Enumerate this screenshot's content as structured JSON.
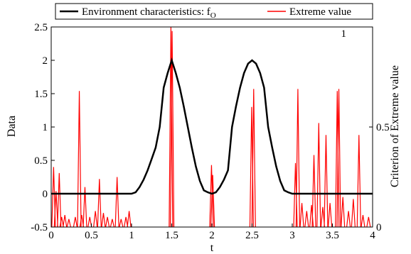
{
  "chart_data": {
    "type": "line",
    "xlabel": "t",
    "ylabel": "Data",
    "y2label": "Criterion of Extreme value",
    "xlim": [
      0,
      4
    ],
    "ylim": [
      -0.5,
      2.5
    ],
    "y2lim": [
      0,
      1
    ],
    "x_ticks": [
      "0",
      "0.5",
      "1",
      "1.5",
      "2",
      "2.5",
      "3",
      "3.5",
      "4"
    ],
    "y_ticks": [
      "-0.5",
      "0",
      "0.5",
      "1",
      "1.5",
      "2",
      "2.5"
    ],
    "y2_ticks": [
      "0",
      "0.5",
      "1"
    ],
    "grid": false,
    "legend_position": "top",
    "legend": [
      "Environment characteristics: f",
      "Extreme value"
    ],
    "legend_subscript": "O",
    "colors": {
      "env": "#000000",
      "extreme": "#ff0000"
    },
    "series": [
      {
        "name": "Environment characteristics: fO",
        "axis": "left",
        "x": [
          0.0,
          0.25,
          0.5,
          0.75,
          1.0,
          1.05,
          1.1,
          1.15,
          1.2,
          1.25,
          1.3,
          1.35,
          1.4,
          1.45,
          1.5,
          1.55,
          1.6,
          1.65,
          1.7,
          1.75,
          1.8,
          1.85,
          1.9,
          1.95,
          2.0,
          2.05,
          2.1,
          2.15,
          2.2,
          2.25,
          2.3,
          2.35,
          2.4,
          2.45,
          2.5,
          2.55,
          2.6,
          2.65,
          2.7,
          2.75,
          2.8,
          2.85,
          2.9,
          2.95,
          3.0,
          3.25,
          3.5,
          3.75,
          4.0
        ],
        "values": [
          0.0,
          0.0,
          0.0,
          0.0,
          0.0,
          0.02,
          0.1,
          0.21,
          0.35,
          0.52,
          0.69,
          1.0,
          1.59,
          1.81,
          2.0,
          1.81,
          1.59,
          1.31,
          1.0,
          0.69,
          0.41,
          0.19,
          0.05,
          0.02,
          0.0,
          0.02,
          0.1,
          0.21,
          0.35,
          1.0,
          1.31,
          1.59,
          1.81,
          1.95,
          2.0,
          1.95,
          1.81,
          1.59,
          1.0,
          0.69,
          0.41,
          0.19,
          0.05,
          0.02,
          0.0,
          0.0,
          0.0,
          0.0,
          0.0
        ]
      },
      {
        "name": "Extreme value",
        "axis": "right",
        "spikes": [
          {
            "x": 0.03,
            "v": 0.3
          },
          {
            "x": 0.06,
            "v": 0.18
          },
          {
            "x": 0.1,
            "v": 0.27
          },
          {
            "x": 0.13,
            "v": 0.05
          },
          {
            "x": 0.17,
            "v": 0.06
          },
          {
            "x": 0.22,
            "v": 0.04
          },
          {
            "x": 0.3,
            "v": 0.05
          },
          {
            "x": 0.35,
            "v": 0.68
          },
          {
            "x": 0.38,
            "v": 0.06
          },
          {
            "x": 0.42,
            "v": 0.2
          },
          {
            "x": 0.48,
            "v": 0.05
          },
          {
            "x": 0.55,
            "v": 0.08
          },
          {
            "x": 0.6,
            "v": 0.24
          },
          {
            "x": 0.65,
            "v": 0.07
          },
          {
            "x": 0.7,
            "v": 0.05
          },
          {
            "x": 0.76,
            "v": 0.04
          },
          {
            "x": 0.82,
            "v": 0.25
          },
          {
            "x": 0.87,
            "v": 0.04
          },
          {
            "x": 0.93,
            "v": 0.05
          },
          {
            "x": 0.97,
            "v": 0.08
          },
          {
            "x": 1.49,
            "v": 1.0
          },
          {
            "x": 1.505,
            "v": 0.98
          },
          {
            "x": 1.995,
            "v": 0.31
          },
          {
            "x": 2.01,
            "v": 0.26
          },
          {
            "x": 2.495,
            "v": 0.6
          },
          {
            "x": 2.52,
            "v": 0.69
          },
          {
            "x": 3.04,
            "v": 0.32
          },
          {
            "x": 3.07,
            "v": 0.69
          },
          {
            "x": 3.12,
            "v": 0.12
          },
          {
            "x": 3.18,
            "v": 0.08
          },
          {
            "x": 3.24,
            "v": 0.11
          },
          {
            "x": 3.27,
            "v": 0.36
          },
          {
            "x": 3.33,
            "v": 0.52
          },
          {
            "x": 3.38,
            "v": 0.1
          },
          {
            "x": 3.42,
            "v": 0.46
          },
          {
            "x": 3.47,
            "v": 0.12
          },
          {
            "x": 3.56,
            "v": 0.68
          },
          {
            "x": 3.58,
            "v": 0.69
          },
          {
            "x": 3.63,
            "v": 0.15
          },
          {
            "x": 3.7,
            "v": 0.08
          },
          {
            "x": 3.76,
            "v": 0.14
          },
          {
            "x": 3.83,
            "v": 0.46
          },
          {
            "x": 3.88,
            "v": 0.06
          },
          {
            "x": 3.95,
            "v": 0.05
          }
        ]
      }
    ]
  }
}
